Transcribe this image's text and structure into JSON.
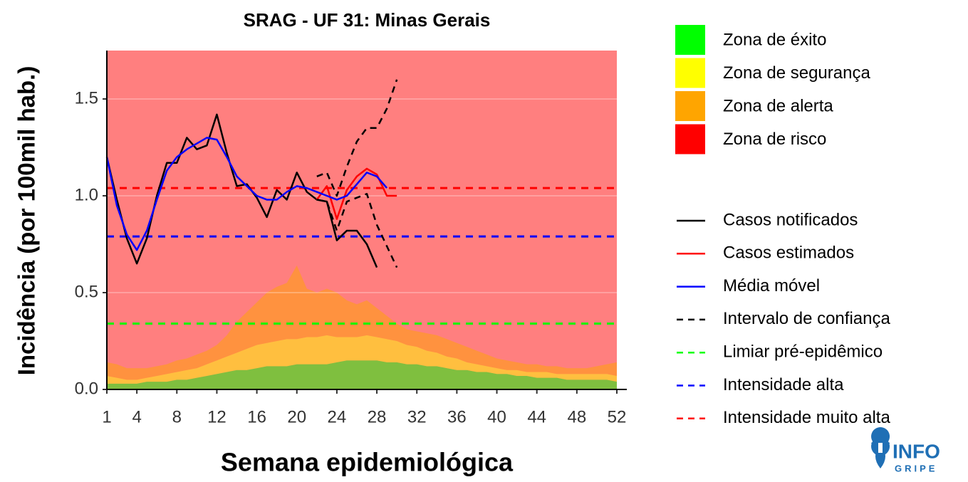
{
  "chart_data": {
    "type": "zone-chart",
    "title": "SRAG - UF 31: Minas Gerais",
    "xlabel": "Semana epidemiológica",
    "ylabel": "Incidência (por 100mil hab.)",
    "x": [
      1,
      2,
      3,
      4,
      5,
      6,
      7,
      8,
      9,
      10,
      11,
      12,
      13,
      14,
      15,
      16,
      17,
      18,
      19,
      20,
      21,
      22,
      23,
      24,
      25,
      26,
      27,
      28,
      29,
      30,
      31,
      32,
      33,
      34,
      35,
      36,
      37,
      38,
      39,
      40,
      41,
      42,
      43,
      44,
      45,
      46,
      47,
      48,
      49,
      50,
      51,
      52
    ],
    "xlim": [
      1,
      52
    ],
    "xticks": [
      1,
      4,
      8,
      12,
      16,
      20,
      24,
      28,
      32,
      36,
      40,
      44,
      48,
      52
    ],
    "ylim": [
      0,
      1.75
    ],
    "yticks": [
      {
        "value": 0,
        "label": "0.0"
      },
      0.5,
      {
        "value": 1,
        "label": "1.0"
      },
      1.5
    ],
    "grid": true,
    "zones": [
      {
        "name": "Zona de éxito",
        "color": "#00ff00",
        "values": [
          0.03,
          0.03,
          0.03,
          0.03,
          0.04,
          0.04,
          0.04,
          0.05,
          0.05,
          0.06,
          0.07,
          0.08,
          0.09,
          0.1,
          0.1,
          0.11,
          0.12,
          0.12,
          0.12,
          0.13,
          0.13,
          0.13,
          0.13,
          0.14,
          0.15,
          0.15,
          0.15,
          0.15,
          0.14,
          0.14,
          0.13,
          0.13,
          0.12,
          0.12,
          0.11,
          0.1,
          0.1,
          0.09,
          0.09,
          0.08,
          0.08,
          0.07,
          0.07,
          0.06,
          0.06,
          0.06,
          0.05,
          0.05,
          0.05,
          0.05,
          0.05,
          0.04
        ]
      },
      {
        "name": "Zona de segurança",
        "color": "#ffff00",
        "values": [
          0.04,
          0.03,
          0.02,
          0.02,
          0.02,
          0.03,
          0.04,
          0.04,
          0.05,
          0.05,
          0.06,
          0.07,
          0.08,
          0.09,
          0.11,
          0.12,
          0.12,
          0.13,
          0.14,
          0.13,
          0.14,
          0.14,
          0.15,
          0.13,
          0.12,
          0.12,
          0.13,
          0.12,
          0.12,
          0.11,
          0.1,
          0.09,
          0.08,
          0.07,
          0.06,
          0.06,
          0.04,
          0.04,
          0.03,
          0.03,
          0.02,
          0.03,
          0.02,
          0.03,
          0.03,
          0.02,
          0.03,
          0.03,
          0.03,
          0.03,
          0.03,
          0.03
        ]
      },
      {
        "name": "Zona de alerta",
        "color": "#ffa500",
        "values": [
          0.07,
          0.07,
          0.06,
          0.06,
          0.05,
          0.05,
          0.05,
          0.06,
          0.06,
          0.07,
          0.07,
          0.08,
          0.11,
          0.16,
          0.19,
          0.22,
          0.26,
          0.28,
          0.29,
          0.38,
          0.25,
          0.23,
          0.24,
          0.23,
          0.19,
          0.17,
          0.18,
          0.15,
          0.12,
          0.09,
          0.08,
          0.08,
          0.09,
          0.09,
          0.09,
          0.08,
          0.08,
          0.07,
          0.06,
          0.05,
          0.05,
          0.04,
          0.04,
          0.04,
          0.03,
          0.04,
          0.03,
          0.03,
          0.03,
          0.04,
          0.05,
          0.07
        ]
      },
      {
        "name": "Zona de risco",
        "color": "#ff0000"
      }
    ],
    "series": [
      {
        "name": "Casos notificados",
        "color": "#000000",
        "dash": false,
        "values": [
          1.2,
          0.98,
          0.78,
          0.65,
          0.78,
          1.0,
          1.17,
          1.17,
          1.3,
          1.24,
          1.26,
          1.42,
          1.22,
          1.05,
          1.06,
          0.99,
          0.89,
          1.03,
          0.98,
          1.12,
          1.02,
          0.98,
          0.97,
          0.77,
          0.82,
          0.82,
          0.75,
          0.63,
          null,
          null,
          null,
          null,
          null,
          null,
          null,
          null,
          null,
          null,
          null,
          null,
          null,
          null,
          null,
          null,
          null,
          null,
          null,
          null,
          null,
          null,
          null,
          null
        ]
      },
      {
        "name": "Casos estimados",
        "color": "#ff0000",
        "dash": false,
        "values": [
          null,
          null,
          null,
          null,
          null,
          null,
          null,
          null,
          null,
          null,
          null,
          null,
          null,
          null,
          null,
          null,
          null,
          null,
          null,
          null,
          null,
          0.98,
          1.05,
          0.88,
          1.03,
          1.1,
          1.14,
          1.11,
          1.0,
          1.0,
          null,
          null,
          null,
          null,
          null,
          null,
          null,
          null,
          null,
          null,
          null,
          null,
          null,
          null,
          null,
          null,
          null,
          null,
          null,
          null,
          null,
          null
        ]
      },
      {
        "name": "Média móvel",
        "color": "#0000ff",
        "dash": false,
        "values": [
          1.2,
          0.95,
          0.8,
          0.72,
          0.82,
          0.98,
          1.13,
          1.2,
          1.24,
          1.27,
          1.3,
          1.29,
          1.2,
          1.1,
          1.05,
          1.0,
          0.98,
          0.98,
          1.02,
          1.05,
          1.04,
          1.02,
          1.0,
          0.98,
          1.0,
          1.06,
          1.12,
          1.1,
          1.04,
          null,
          null,
          null,
          null,
          null,
          null,
          null,
          null,
          null,
          null,
          null,
          null,
          null,
          null,
          null,
          null,
          null,
          null,
          null,
          null,
          null,
          null,
          null
        ]
      },
      {
        "name": "Intervalo de confiança",
        "color": "#000000",
        "dash": true,
        "upper": [
          null,
          null,
          null,
          null,
          null,
          null,
          null,
          null,
          null,
          null,
          null,
          null,
          null,
          null,
          null,
          null,
          null,
          null,
          null,
          null,
          null,
          1.1,
          1.12,
          1.0,
          1.15,
          1.28,
          1.35,
          1.35,
          1.45,
          1.6,
          null,
          null,
          null,
          null,
          null,
          null,
          null,
          null,
          null,
          null,
          null,
          null,
          null,
          null,
          null,
          null,
          null,
          null,
          null,
          null,
          null,
          null
        ],
        "lower": [
          null,
          null,
          null,
          null,
          null,
          null,
          null,
          null,
          null,
          null,
          null,
          null,
          null,
          null,
          null,
          null,
          null,
          null,
          null,
          null,
          null,
          0.98,
          0.97,
          0.82,
          0.97,
          0.99,
          1.01,
          0.85,
          0.74,
          0.63,
          null,
          null,
          null,
          null,
          null,
          null,
          null,
          null,
          null,
          null,
          null,
          null,
          null,
          null,
          null,
          null,
          null,
          null,
          null,
          null,
          null,
          null
        ]
      }
    ],
    "thresholds": [
      {
        "name": "Limiar pré-epidêmico",
        "color": "#00ff00",
        "value": 0.34
      },
      {
        "name": "Intensidade alta",
        "color": "#0000ff",
        "value": 0.79
      },
      {
        "name": "Intensidade muito alta",
        "color": "#ff0000",
        "value": 1.04
      }
    ]
  },
  "logo": {
    "top": "INFO",
    "bottom": "GRIPE"
  }
}
